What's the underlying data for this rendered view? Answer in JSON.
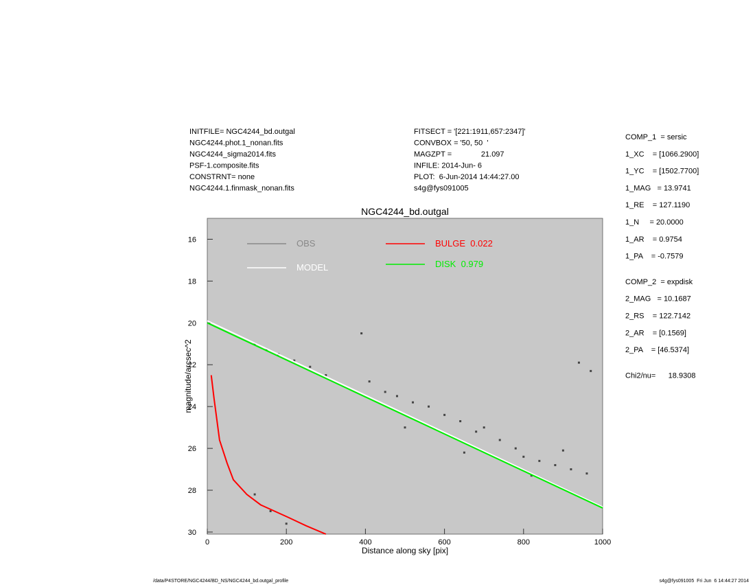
{
  "header_left": [
    "INITFILE= NGC4244_bd.outgal",
    "NGC4244.phot.1_nonan.fits",
    "NGC4244_sigma2014.fits",
    "PSF-1.composite.fits",
    "CONSTRNT= none",
    "NGC4244.1.finmask_nonan.fits"
  ],
  "header_mid": [
    "FITSECT = '[221:1911,657:2347]'",
    "CONVBOX = '50, 50  '",
    "MAGZPT =              21.097",
    "INFILE: 2014-Jun- 6",
    "PLOT:  6-Jun-2014 14:44:27.00",
    "s4g@fys091005"
  ],
  "params": [
    "COMP_1  = sersic",
    "1_XC    = [1066.2900]",
    "1_YC    = [1502.7700]",
    "1_MAG   = 13.9741",
    "1_RE    = 127.1190",
    "1_N     = 20.0000",
    "1_AR    = 0.9754",
    "1_PA    = -0.7579",
    "COMP_2  = expdisk",
    "2_MAG   = 10.1687",
    "2_RS    = 122.7142",
    "2_AR    = [0.1569]",
    "2_PA    = [46.5374]",
    "Chi2/nu=      18.9308"
  ],
  "footer_left": "/data/P4STORE/NGC4244/BD_NS/NGC4244_bd.outgal_profile",
  "footer_right": "s4g@fys091005  Fri Jun  6 14:44:27 2014",
  "chart_data": {
    "type": "scatter",
    "title": "NGC4244_bd.outgal",
    "x_label": "Distance along sky [pix]",
    "y_label": "magnitude/arcsec^2",
    "xlim": [
      0,
      1000
    ],
    "xticks": [
      0,
      200,
      400,
      600,
      800,
      1000
    ],
    "ylim": [
      15,
      30.1
    ],
    "yticks": [
      16,
      18,
      20,
      22,
      24,
      26,
      28,
      30
    ],
    "y_inverted": true,
    "series": [
      {
        "name": "OBS",
        "color": "#888888",
        "kind": "scatter",
        "x": [
          120,
          150,
          180,
          220,
          260,
          300,
          390,
          410,
          450,
          480,
          520,
          560,
          600,
          640,
          680,
          700,
          740,
          780,
          800,
          840,
          880,
          920,
          960,
          940,
          970,
          160,
          200,
          120,
          500,
          650,
          820,
          900
        ],
        "values": [
          21.0,
          21.3,
          21.5,
          21.8,
          22.1,
          22.5,
          20.5,
          22.8,
          23.3,
          23.5,
          23.8,
          24.0,
          24.4,
          24.7,
          25.2,
          25.0,
          25.6,
          26.0,
          26.4,
          26.6,
          26.8,
          27.0,
          27.2,
          21.9,
          22.3,
          29.0,
          29.6,
          28.2,
          25.0,
          26.2,
          27.3,
          26.1
        ]
      },
      {
        "name": "MODEL",
        "color": "#ffffff",
        "kind": "line",
        "x": [
          0,
          1000
        ],
        "values": [
          19.9,
          28.8
        ]
      },
      {
        "name": "BULGE  0.022",
        "color": "#ff0000",
        "kind": "line",
        "x": [
          10,
          17,
          31,
          50,
          66,
          100,
          135,
          205,
          250,
          300
        ],
        "values": [
          22.5,
          23.6,
          25.6,
          26.7,
          27.5,
          28.2,
          28.7,
          29.3,
          29.7,
          30.1
        ]
      },
      {
        "name": "DISK  0.979",
        "color": "#00ee00",
        "kind": "line",
        "x": [
          0,
          1000
        ],
        "values": [
          20,
          28.85
        ]
      }
    ]
  }
}
